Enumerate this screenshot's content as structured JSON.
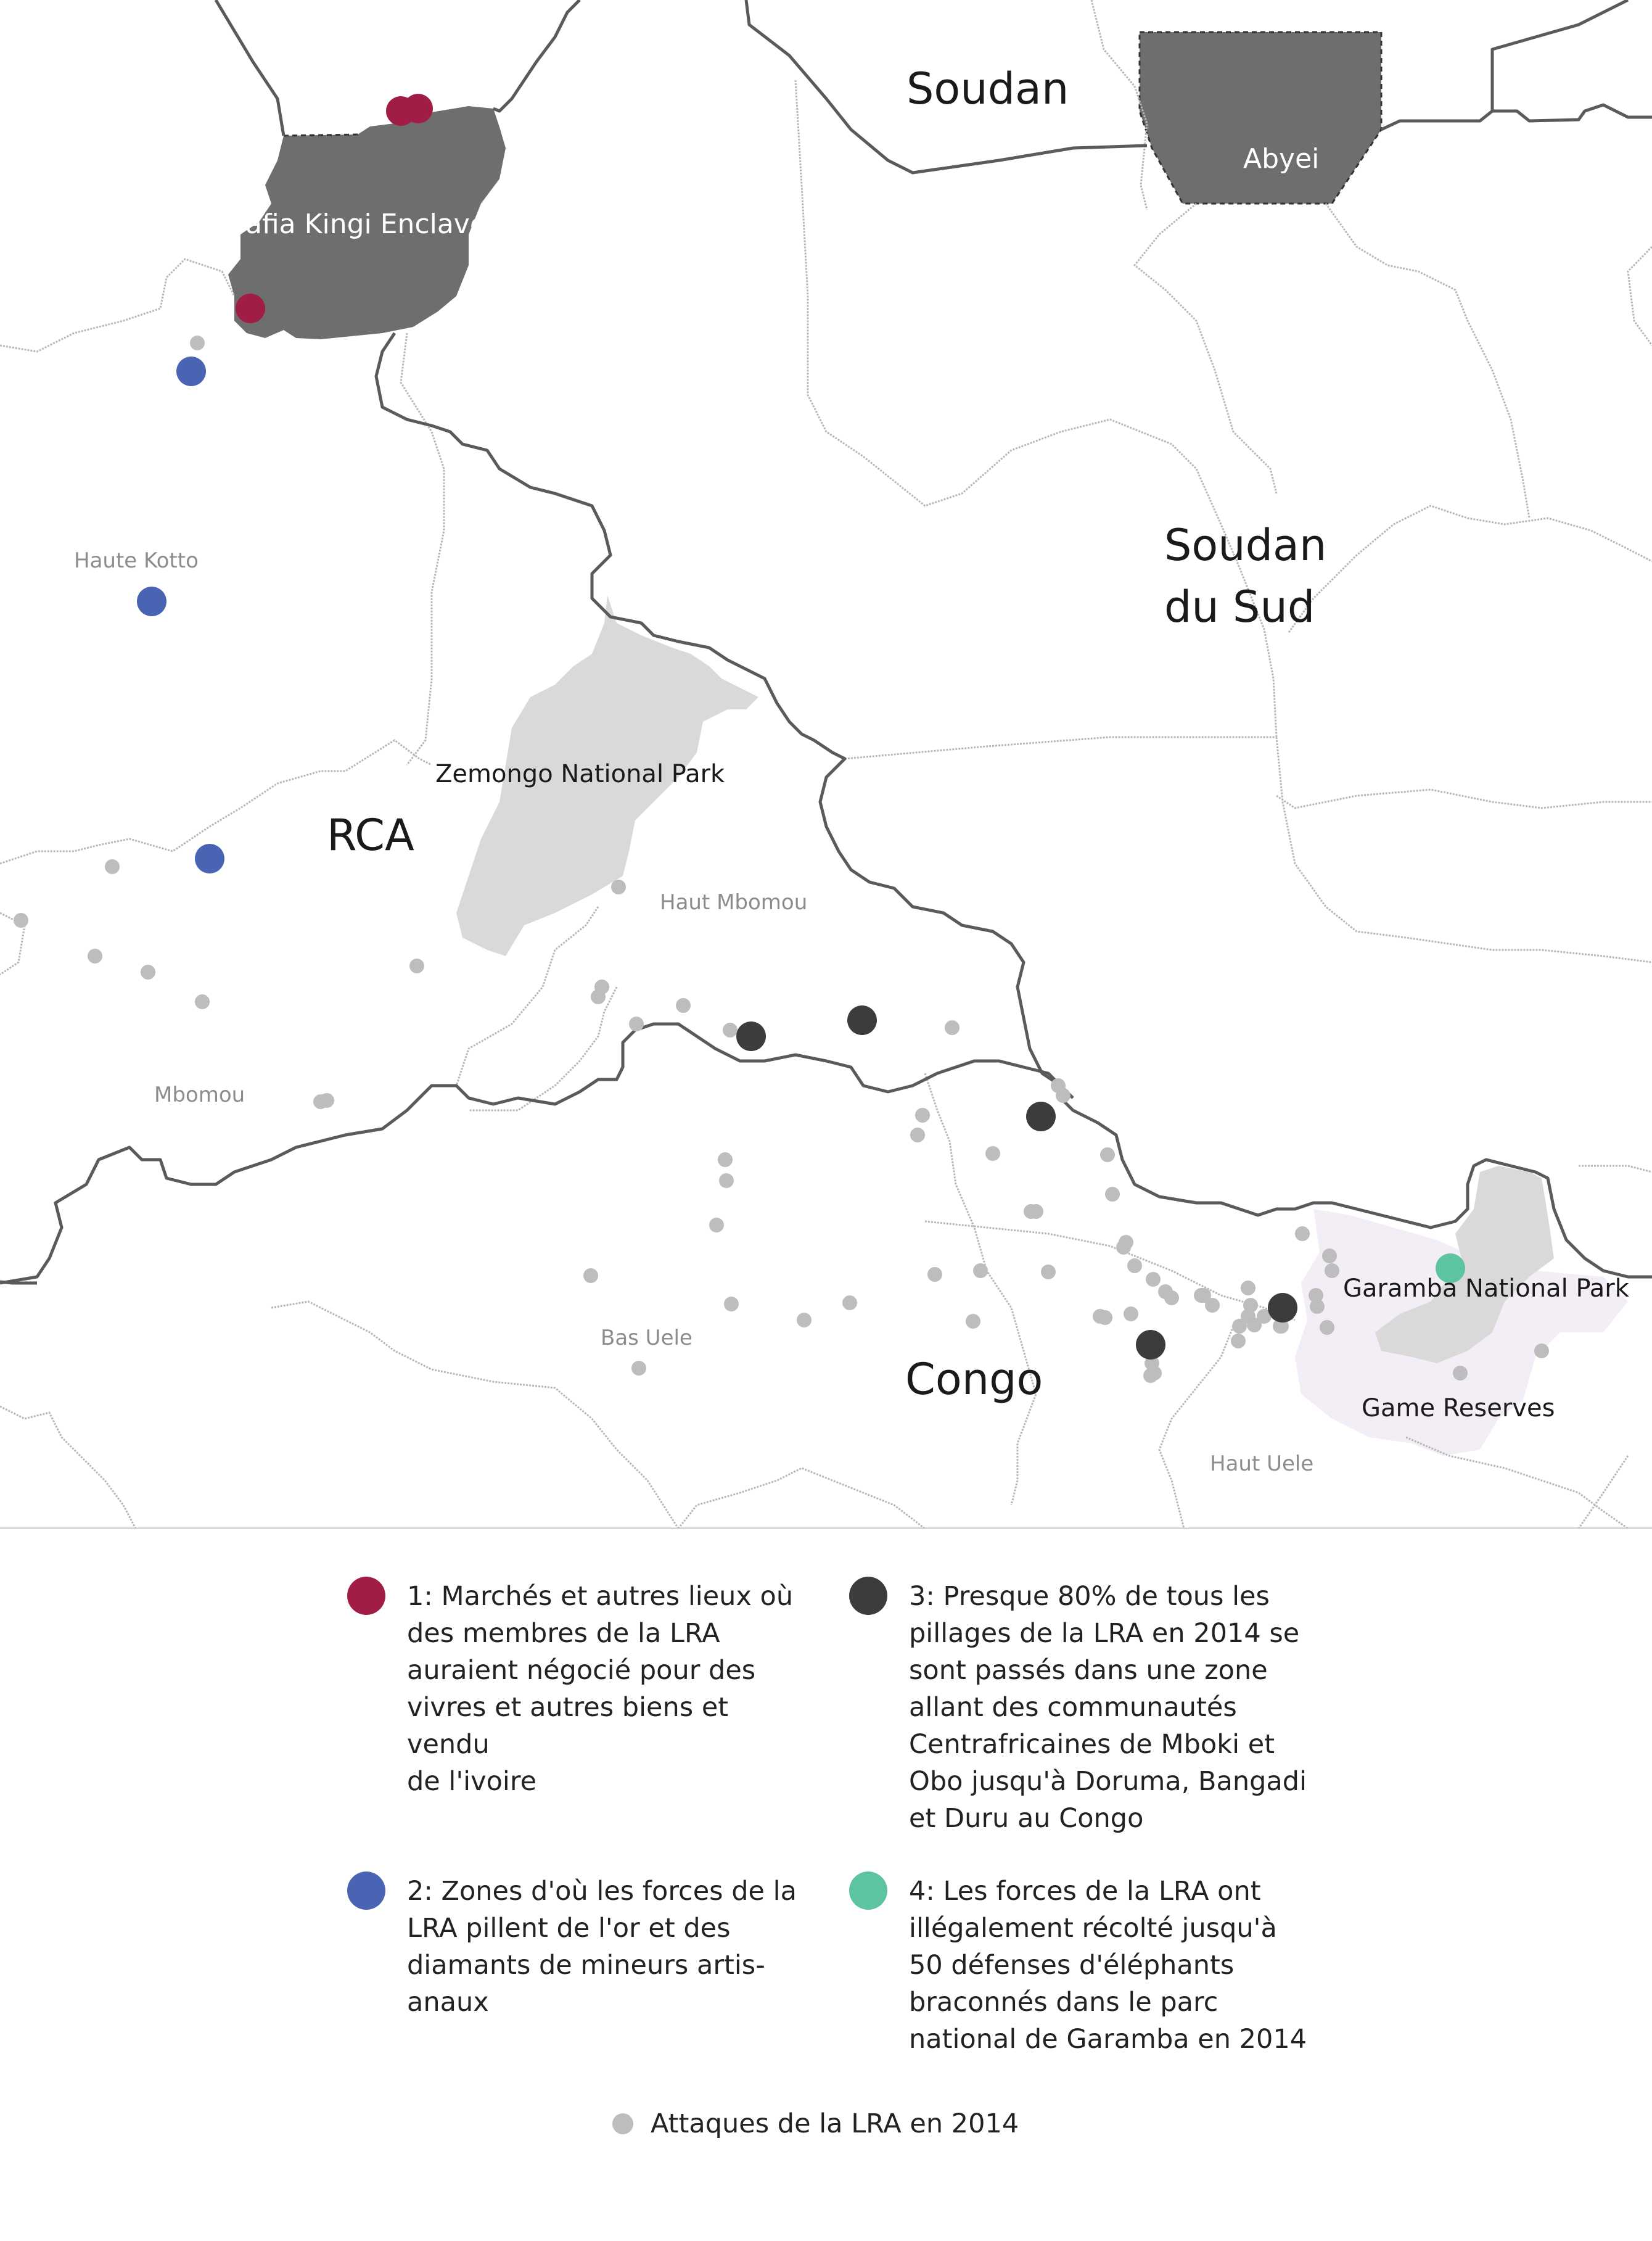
{
  "colors": {
    "enclave": "#6e6e6e",
    "park": "#d9d9d9",
    "reserve": "#f3eef6",
    "border": "#5a5a5a",
    "admin": "#b8b8b8",
    "markets": "#a01e46",
    "mining": "#4a64b4",
    "looting": "#3c3c3c",
    "ivory": "#5cc4a0",
    "attacks": "#bdbdbd"
  },
  "map": {
    "countries": {
      "soudan": "Soudan",
      "soudan_du_sud_line1": "Soudan",
      "soudan_du_sud_line2": "du Sud",
      "rca": "RCA",
      "congo": "Congo"
    },
    "regions": {
      "haute_kotto": "Haute Kotto",
      "haut_mbomou": "Haut Mbomou",
      "mbomou": "Mbomou",
      "bas_uele": "Bas Uele",
      "haut_uele": "Haut Uele"
    },
    "features": {
      "enclave": "afia Kingi Enclave",
      "abyei": "Abyei",
      "zemongo": "Zemongo National Park",
      "garamba": "Garamba National Park",
      "game_reserves": "Game Reserves"
    }
  },
  "legend": {
    "item1": "1: Marchés et autres lieux où\ndes membres de la LRA\nauraient négocié pour des\nvivres et autres biens et vendu\nde l'ivoire",
    "item2": "2: Zones d'où les forces de la\nLRA pillent de l'or et des\ndiamants de mineurs artis-\nanaux",
    "item3": "3: Presque 80% de tous les\npillages de la LRA en 2014 se\nsont passés dans une zone\nallant des communautés\nCentrafricaines de Mboki et\nObo jusqu'à Doruma, Bangadi\net Duru au Congo",
    "item4": "4: Les forces de la LRA ont\nillégalement récolté jusqu'à\n50 défenses d'éléphants\nbraconnés dans le parc\nnational de Garamba en 2014",
    "attacks": "Attaques de la LRA en 2014"
  }
}
